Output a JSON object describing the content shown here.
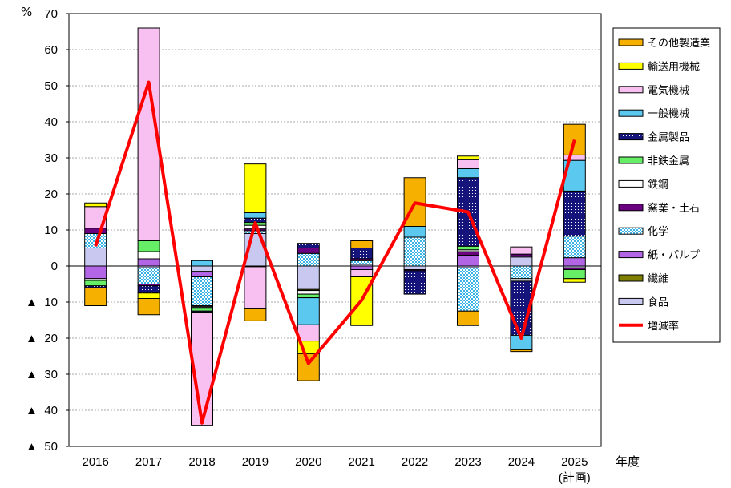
{
  "chart_data": {
    "type": "bar",
    "subtype": "stacked-bar-with-line",
    "y_unit_label": "%",
    "x_axis_label": "年度",
    "negative_marker": "▲",
    "ylim": [
      -50,
      70
    ],
    "y_ticks": [
      70,
      60,
      50,
      40,
      30,
      20,
      10,
      0,
      -10,
      -20,
      -30,
      -40,
      -50
    ],
    "y_tick_labels": [
      "70",
      "60",
      "50",
      "40",
      "30",
      "20",
      "10",
      "0",
      "10",
      "20",
      "30",
      "40",
      "50"
    ],
    "categories": [
      "2016",
      "2017",
      "2018",
      "2019",
      "2020",
      "2021",
      "2022",
      "2023",
      "2024",
      "2025"
    ],
    "category_sublabels": [
      "",
      "",
      "",
      "",
      "",
      "",
      "",
      "",
      "",
      "(計画)"
    ],
    "series": [
      {
        "name": "食品",
        "color": "#c8c8f0",
        "pattern": "solid",
        "values": [
          5,
          -0.5,
          -1.5,
          9,
          -6.5,
          0.5,
          -1,
          -0.5,
          2.5,
          -0.5
        ]
      },
      {
        "name": "繊維",
        "color": "#808000",
        "pattern": "solid",
        "values": [
          0,
          0,
          0,
          0,
          -0.3,
          0,
          0,
          0,
          0,
          0
        ]
      },
      {
        "name": "紙・パルプ",
        "color": "#b266e6",
        "pattern": "solid",
        "values": [
          -3.5,
          2,
          -1.5,
          -0.2,
          0,
          -1,
          0,
          3,
          0.3,
          2.3
        ]
      },
      {
        "name": "化学",
        "color": "#5bc8f0",
        "pattern": "checker",
        "values": [
          4,
          -4.5,
          -8,
          0.8,
          3.5,
          1,
          8,
          -12,
          -3.5,
          6
        ]
      },
      {
        "name": "窯業・土石",
        "color": "#6a0080",
        "pattern": "solid",
        "values": [
          1.5,
          -0.5,
          -0.2,
          0.5,
          1.5,
          0.5,
          -0.3,
          1,
          0.5,
          -0.5
        ]
      },
      {
        "name": "鉄鋼",
        "color": "#ffffff",
        "pattern": "solid",
        "values": [
          -0.5,
          2,
          -0.3,
          1,
          -1,
          0,
          0,
          0.5,
          -0.7,
          0
        ]
      },
      {
        "name": "非鉄金属",
        "color": "#66ee66",
        "pattern": "solid",
        "values": [
          -1.5,
          3,
          -1,
          0.8,
          -1,
          0,
          0,
          1,
          0,
          -2.5
        ]
      },
      {
        "name": "金属製品",
        "color": "#1a1a8c",
        "pattern": "dots",
        "values": [
          -0.5,
          -2,
          -0.3,
          1.2,
          1.3,
          3,
          -6.5,
          19,
          -15,
          12.5
        ]
      },
      {
        "name": "一般機械",
        "color": "#5bc8f0",
        "pattern": "solid",
        "values": [
          0,
          0,
          1.5,
          1.5,
          -7.5,
          0,
          3,
          2.5,
          -4,
          8.5
        ]
      },
      {
        "name": "電気機械",
        "color": "#f8c0f0",
        "pattern": "solid",
        "values": [
          6,
          59,
          -31.5,
          -11.5,
          -4.5,
          -2,
          0,
          2.5,
          2,
          1.5
        ]
      },
      {
        "name": "輸送用機械",
        "color": "#ffff00",
        "pattern": "solid",
        "values": [
          1,
          -1.5,
          0,
          13.5,
          -3.5,
          -13.5,
          0,
          1,
          0,
          -1
        ]
      },
      {
        "name": "その他製造業",
        "color": "#f5b000",
        "pattern": "solid",
        "values": [
          -5,
          -4.5,
          0,
          -3.5,
          -7.5,
          2,
          13.5,
          -4,
          -0.5,
          8.5
        ]
      }
    ],
    "line": {
      "name": "増減率",
      "color": "#ff0000",
      "values": [
        5.5,
        51,
        -43.5,
        12,
        -27,
        -9.5,
        17.5,
        15,
        -20,
        35
      ]
    },
    "legend": {
      "position": "right",
      "order": [
        "その他製造業",
        "輸送用機械",
        "電気機械",
        "一般機械",
        "金属製品",
        "非鉄金属",
        "鉄鋼",
        "窯業・土石",
        "化学",
        "紙・パルプ",
        "繊維",
        "食品",
        "増減率"
      ]
    }
  }
}
